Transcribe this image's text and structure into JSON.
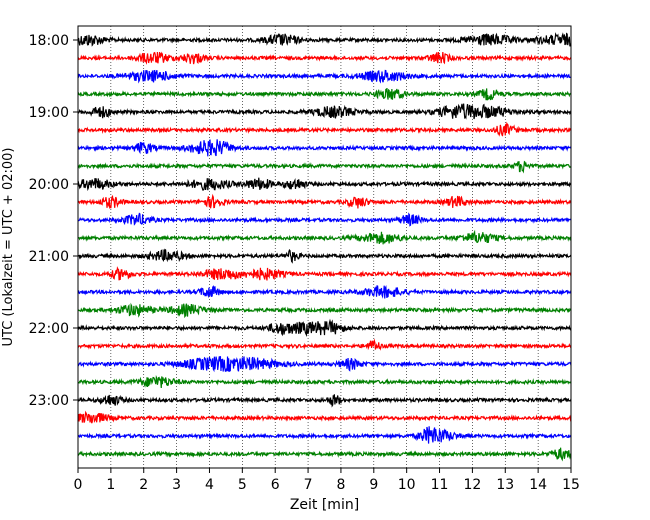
{
  "chart_data": {
    "type": "line",
    "subtype": "helicorder",
    "title": "",
    "xlabel": "Zeit  [min]",
    "ylabel": "UTC (Lokalzeit = UTC + 02:00)",
    "xlim": [
      0,
      15
    ],
    "x_ticks": [
      0,
      1,
      2,
      3,
      4,
      5,
      6,
      7,
      8,
      9,
      10,
      11,
      12,
      13,
      14,
      15
    ],
    "x_tick_labels": [
      "0",
      "1",
      "2",
      "3",
      "4",
      "5",
      "6",
      "7",
      "8",
      "9",
      "10",
      "11",
      "12",
      "13",
      "14",
      "15"
    ],
    "y_tick_labels": [
      "18:00",
      "19:00",
      "20:00",
      "21:00",
      "22:00",
      "23:00"
    ],
    "grid": "vertical dotted at each minute",
    "trace_colors": [
      "#000000",
      "#ff0000",
      "#0000ff",
      "#008000"
    ],
    "traces": [
      {
        "start": "18:00",
        "bursts": [
          [
            0.3,
            0.5
          ],
          [
            6.2,
            0.5
          ],
          [
            12.5,
            0.7
          ],
          [
            14.8,
            0.8
          ]
        ]
      },
      {
        "start": "18:15",
        "bursts": [
          [
            2.3,
            0.5
          ],
          [
            3.5,
            0.3
          ],
          [
            11.0,
            0.3
          ]
        ]
      },
      {
        "start": "18:30",
        "bursts": [
          [
            2.2,
            0.7
          ],
          [
            9.3,
            0.7
          ]
        ]
      },
      {
        "start": "18:45",
        "bursts": [
          [
            9.5,
            0.4
          ],
          [
            12.5,
            0.3
          ]
        ]
      },
      {
        "start": "19:00",
        "bursts": [
          [
            0.7,
            0.3
          ],
          [
            7.8,
            0.6
          ],
          [
            11.5,
            0.6
          ],
          [
            12.4,
            0.8
          ]
        ]
      },
      {
        "start": "19:15",
        "bursts": [
          [
            13.0,
            0.3
          ]
        ]
      },
      {
        "start": "19:30",
        "bursts": [
          [
            2.0,
            0.3
          ],
          [
            3.8,
            0.5
          ],
          [
            4.3,
            0.4
          ]
        ]
      },
      {
        "start": "19:45",
        "bursts": [
          [
            13.5,
            0.2
          ]
        ]
      },
      {
        "start": "20:00",
        "bursts": [
          [
            0.5,
            0.5
          ],
          [
            4.0,
            0.6
          ],
          [
            5.5,
            0.4
          ],
          [
            6.6,
            0.3
          ]
        ]
      },
      {
        "start": "20:15",
        "bursts": [
          [
            1.0,
            0.3
          ],
          [
            4.1,
            0.3
          ],
          [
            8.5,
            0.3
          ],
          [
            11.5,
            0.3
          ]
        ]
      },
      {
        "start": "20:30",
        "bursts": [
          [
            1.8,
            0.4
          ],
          [
            10.1,
            0.3
          ]
        ]
      },
      {
        "start": "20:45",
        "bursts": [
          [
            9.2,
            0.6
          ],
          [
            12.2,
            0.5
          ]
        ]
      },
      {
        "start": "21:00",
        "bursts": [
          [
            2.7,
            0.5
          ],
          [
            6.5,
            0.2
          ]
        ]
      },
      {
        "start": "21:15",
        "bursts": [
          [
            1.3,
            0.3
          ],
          [
            4.4,
            0.6
          ],
          [
            5.7,
            0.5
          ]
        ]
      },
      {
        "start": "21:30",
        "bursts": [
          [
            4.0,
            0.3
          ],
          [
            9.3,
            0.6
          ]
        ]
      },
      {
        "start": "21:45",
        "bursts": [
          [
            1.7,
            0.5
          ],
          [
            3.3,
            0.5
          ]
        ]
      },
      {
        "start": "22:00",
        "bursts": [
          [
            6.2,
            0.4
          ],
          [
            7.0,
            0.5
          ],
          [
            7.7,
            0.4
          ]
        ]
      },
      {
        "start": "22:15",
        "bursts": [
          [
            9.0,
            0.2
          ]
        ]
      },
      {
        "start": "22:30",
        "bursts": [
          [
            4.0,
            0.9
          ],
          [
            5.2,
            0.9
          ],
          [
            8.3,
            0.3
          ]
        ]
      },
      {
        "start": "22:45",
        "bursts": [
          [
            2.4,
            0.5
          ]
        ]
      },
      {
        "start": "23:00",
        "bursts": [
          [
            1.0,
            0.3
          ],
          [
            7.8,
            0.2
          ]
        ]
      },
      {
        "start": "23:15",
        "bursts": [
          [
            0.4,
            0.5
          ]
        ]
      },
      {
        "start": "23:30",
        "bursts": [
          [
            11.0,
            0.5
          ],
          [
            10.7,
            0.3
          ]
        ]
      },
      {
        "start": "23:45",
        "bursts": [
          [
            14.7,
            0.3
          ]
        ]
      }
    ]
  }
}
